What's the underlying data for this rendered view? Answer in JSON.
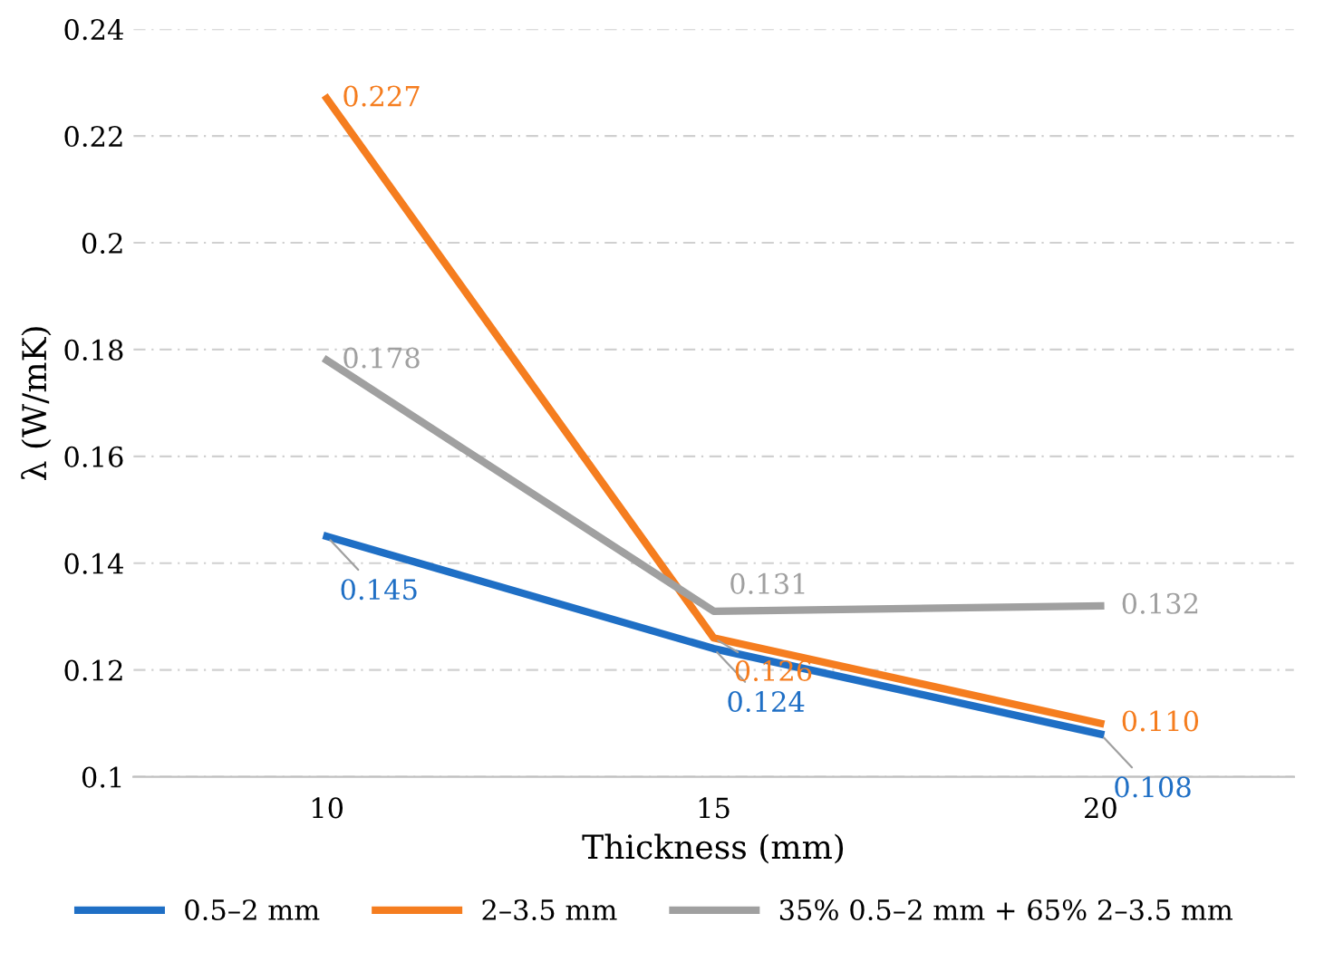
{
  "chart_data": {
    "type": "line",
    "xlabel": "Thickness (mm)",
    "ylabel": "λ (W/mK)",
    "categories": [
      "10",
      "15",
      "20"
    ],
    "series": [
      {
        "name": "0.5–2 mm",
        "color": "#1f6fc5",
        "values": [
          0.145,
          0.124,
          0.108
        ],
        "value_labels": [
          "0.145",
          "0.124",
          "0.108"
        ]
      },
      {
        "name": "2–3.5 mm",
        "color": "#f57d1f",
        "values": [
          0.227,
          0.126,
          0.11
        ],
        "value_labels": [
          "0.227",
          "0.126",
          "0.110"
        ]
      },
      {
        "name": "35% 0.5–2 mm + 65% 2–3.5 mm",
        "color": "#a0a0a0",
        "values": [
          0.178,
          0.131,
          0.132
        ],
        "value_labels": [
          "0.178",
          "0.131",
          "0.132"
        ]
      }
    ],
    "ylim": [
      0.1,
      0.24
    ],
    "yticks": [
      0.1,
      0.12,
      0.14,
      0.16,
      0.18,
      0.2,
      0.22,
      0.24
    ],
    "grid": "y",
    "legend": "bottom",
    "marker": "none",
    "line_style": "solid"
  }
}
